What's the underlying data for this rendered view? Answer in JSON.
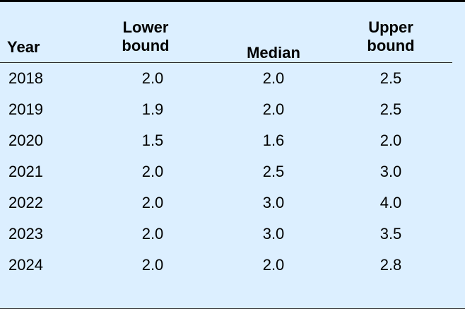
{
  "chart_data": {
    "type": "table",
    "columns": [
      "Year",
      "Lower bound",
      "Median",
      "Upper bound"
    ],
    "header_lines": {
      "year": [
        "Year"
      ],
      "lower": [
        "Lower",
        "bound"
      ],
      "median": [
        "Median"
      ],
      "upper": [
        "Upper",
        "bound"
      ]
    },
    "rows": [
      {
        "year": "2018",
        "lower": "2.0",
        "median": "2.0",
        "upper": "2.5"
      },
      {
        "year": "2019",
        "lower": "1.9",
        "median": "2.0",
        "upper": "2.5"
      },
      {
        "year": "2020",
        "lower": "1.5",
        "median": "1.6",
        "upper": "2.0"
      },
      {
        "year": "2021",
        "lower": "2.0",
        "median": "2.5",
        "upper": "3.0"
      },
      {
        "year": "2022",
        "lower": "2.0",
        "median": "3.0",
        "upper": "4.0"
      },
      {
        "year": "2023",
        "lower": "2.0",
        "median": "3.0",
        "upper": "3.5"
      },
      {
        "year": "2024",
        "lower": "2.0",
        "median": "2.0",
        "upper": "2.8"
      }
    ]
  },
  "colors": {
    "background": "#dcefff",
    "text": "#000000",
    "top_rule": "#000000",
    "rule": "#2a2a2a"
  }
}
